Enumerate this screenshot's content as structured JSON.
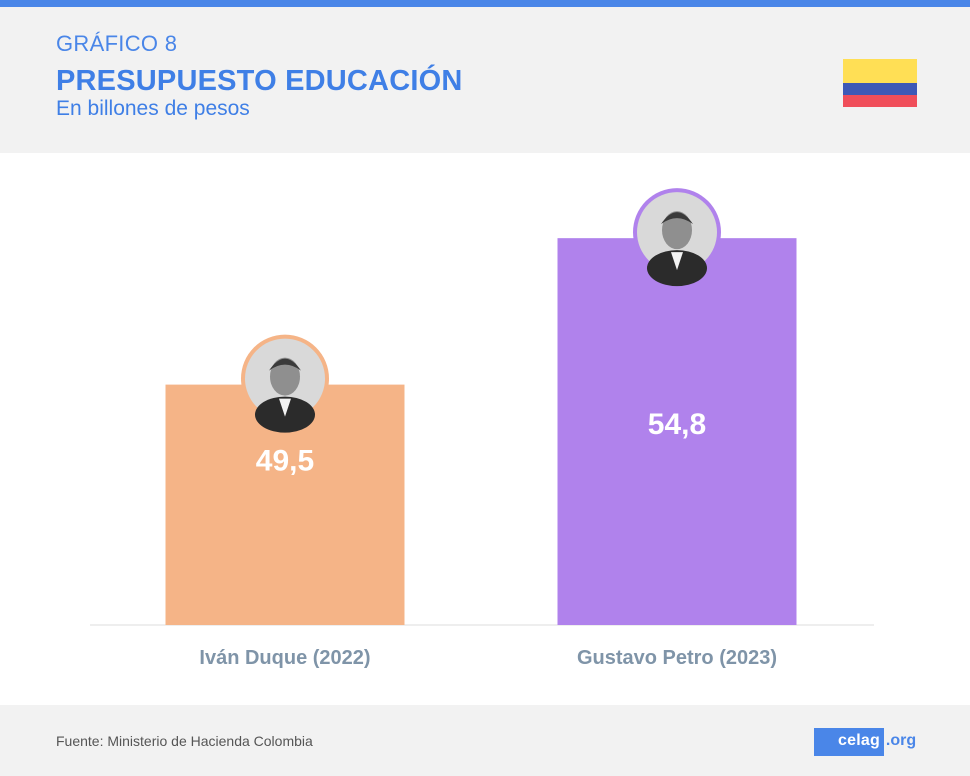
{
  "header": {
    "kicker": "GRÁFICO 8",
    "title": "PRESUPUESTO EDUCACIÓN",
    "subtitle": "En billones de pesos"
  },
  "flag": {
    "name": "colombia-flag",
    "colors": [
      "#ffdf55",
      "#3e59b6",
      "#f04e5a"
    ]
  },
  "chart_data": {
    "type": "bar",
    "title": "PRESUPUESTO EDUCACIÓN",
    "subtitle": "En billones de pesos",
    "categories": [
      "Iván Duque (2022)",
      "Gustavo Petro (2023)"
    ],
    "values": [
      49.5,
      54.8
    ],
    "value_labels": [
      "49,5",
      "54,8"
    ],
    "colors": [
      "#f5b487",
      "#b082ec"
    ],
    "ylim": [
      40.8,
      56
    ],
    "grid": false,
    "legend": "none",
    "xlabel": "",
    "ylabel": ""
  },
  "footer": {
    "source": "Fuente: Ministerio de Hacienda Colombia",
    "brand_main": "celag",
    "brand_tld": ".org"
  }
}
